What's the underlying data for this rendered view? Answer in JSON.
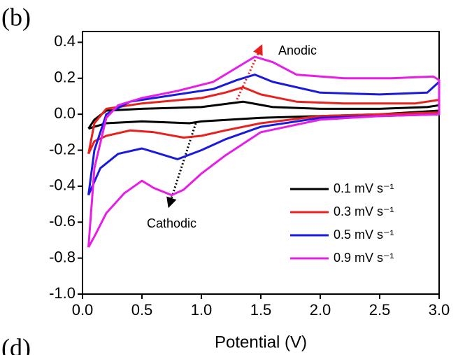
{
  "chart_data": {
    "type": "line",
    "panel_label": "(b)",
    "next_panel_label": "(d)",
    "x_label": "Potential (V)",
    "annotations": [
      "Anodic",
      "Cathodic"
    ],
    "xlim": [
      0,
      3
    ],
    "ylim": [
      -1.0,
      0.46
    ],
    "xticks": [
      {
        "value": 0,
        "label": "0.0"
      },
      0.5,
      {
        "value": 1,
        "label": "1.0"
      },
      1.5,
      {
        "value": 2,
        "label": "2.0"
      },
      2.5,
      {
        "value": 3,
        "label": "3.0"
      }
    ],
    "yticks": [
      0.4,
      0.2,
      {
        "value": 0,
        "label": "0.0"
      },
      -0.2,
      -0.4,
      -0.6,
      -0.8,
      {
        "value": -1,
        "label": "-1.0"
      }
    ],
    "legend": "lower right",
    "series": [
      {
        "name": "0.1 mV s⁻¹",
        "color": "#000000",
        "x": [
          0.05,
          0.1,
          0.2,
          0.5,
          1.0,
          1.35,
          1.6,
          2.0,
          2.5,
          2.9,
          3.0,
          3.0,
          2.5,
          2.0,
          1.5,
          1.0,
          0.9,
          0.5,
          0.2,
          0.1,
          0.05
        ],
        "values": [
          -0.08,
          -0.03,
          0.02,
          0.03,
          0.04,
          0.07,
          0.04,
          0.03,
          0.03,
          0.04,
          0.05,
          0.02,
          0.0,
          -0.01,
          -0.02,
          -0.04,
          -0.05,
          -0.04,
          -0.05,
          -0.07,
          -0.08
        ]
      },
      {
        "name": "0.3 mV s⁻¹",
        "color": "#e8211f",
        "x": [
          0.05,
          0.1,
          0.2,
          0.5,
          1.0,
          1.2,
          1.35,
          1.5,
          1.8,
          2.2,
          2.8,
          3.0,
          3.0,
          2.5,
          2.0,
          1.5,
          1.2,
          1.0,
          0.85,
          0.6,
          0.4,
          0.2,
          0.1,
          0.05
        ],
        "values": [
          -0.22,
          -0.05,
          0.03,
          0.06,
          0.09,
          0.12,
          0.15,
          0.11,
          0.07,
          0.06,
          0.06,
          0.08,
          0.01,
          0.0,
          -0.01,
          -0.05,
          -0.09,
          -0.12,
          -0.13,
          -0.1,
          -0.09,
          -0.12,
          -0.15,
          -0.22
        ]
      },
      {
        "name": "0.5 mV s⁻¹",
        "color": "#1a1adf",
        "x": [
          0.05,
          0.1,
          0.2,
          0.4,
          0.8,
          1.1,
          1.3,
          1.45,
          1.6,
          2.0,
          2.5,
          2.9,
          3.0,
          3.0,
          2.5,
          2.0,
          1.5,
          1.2,
          1.0,
          0.8,
          0.6,
          0.5,
          0.3,
          0.15,
          0.05
        ],
        "values": [
          -0.45,
          -0.2,
          0.0,
          0.07,
          0.11,
          0.14,
          0.19,
          0.22,
          0.18,
          0.12,
          0.11,
          0.12,
          0.18,
          0.0,
          -0.01,
          -0.02,
          -0.07,
          -0.14,
          -0.2,
          -0.25,
          -0.21,
          -0.19,
          -0.22,
          -0.3,
          -0.45
        ]
      },
      {
        "name": "0.9 mV s⁻¹",
        "color": "#e61ee6",
        "x": [
          0.05,
          0.1,
          0.2,
          0.3,
          0.5,
          0.8,
          1.1,
          1.3,
          1.45,
          1.6,
          1.8,
          2.2,
          2.6,
          2.95,
          3.0,
          3.0,
          2.5,
          2.0,
          1.5,
          1.2,
          1.0,
          0.85,
          0.75,
          0.6,
          0.5,
          0.35,
          0.2,
          0.1,
          0.05
        ],
        "values": [
          -0.74,
          -0.3,
          -0.02,
          0.05,
          0.09,
          0.13,
          0.18,
          0.26,
          0.32,
          0.29,
          0.22,
          0.2,
          0.2,
          0.21,
          0.19,
          0.0,
          -0.01,
          -0.03,
          -0.1,
          -0.23,
          -0.33,
          -0.42,
          -0.45,
          -0.41,
          -0.37,
          -0.44,
          -0.55,
          -0.68,
          -0.74
        ]
      }
    ]
  }
}
